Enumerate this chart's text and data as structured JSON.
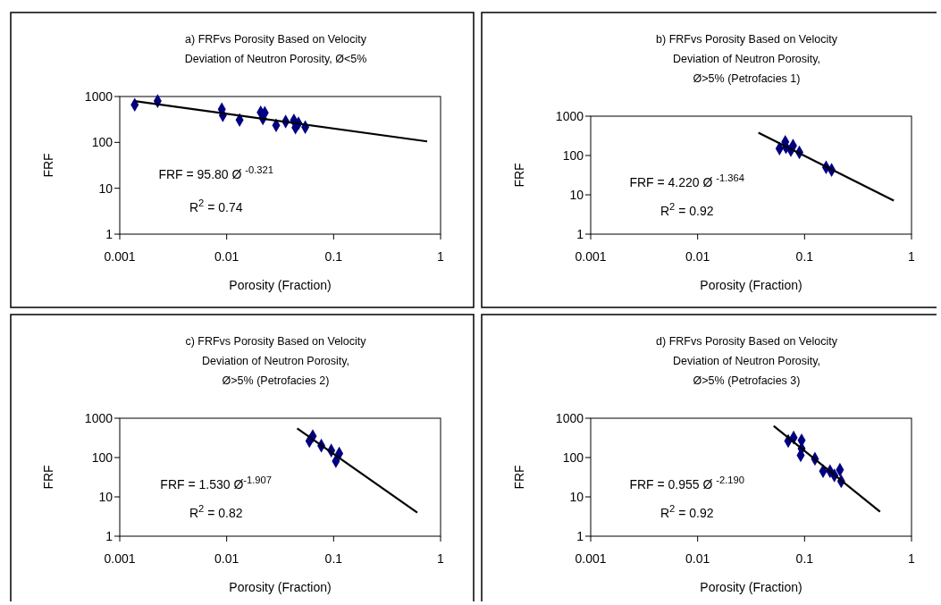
{
  "chart_data": [
    {
      "type": "scatter",
      "title": "a) FRFvs Porosity Based on Velocity\nDeviation of Neutron Porosity, Ø<5%",
      "xlabel": "Porosity (Fraction)",
      "ylabel": "FRF",
      "log": "xy",
      "xlim": [
        0.001,
        1
      ],
      "ylim": [
        1,
        1000
      ],
      "xticks": [
        0.001,
        0.01,
        0.1,
        1
      ],
      "yticks": [
        1,
        10,
        100,
        1000
      ],
      "annotations": [
        "FRF = 95.80 Ø $^{-0.321}$",
        "R$^{2}$ = 0.74"
      ],
      "series": [
        {
          "marker": "diamond",
          "color": "#000080",
          "x": [
            0.00138,
            0.00226,
            0.009,
            0.0092,
            0.0132,
            0.0208,
            0.0227,
            0.0218,
            0.029,
            0.0356,
            0.0425,
            0.044,
            0.0469,
            0.0543
          ],
          "values": [
            660,
            795,
            525,
            390,
            307,
            450,
            440,
            333,
            235,
            285,
            300,
            210,
            260,
            215
          ]
        },
        {
          "type": "line",
          "marker": "none",
          "color": "#000000",
          "x": [
            0.00138,
            0.75
          ],
          "values": [
            793,
            105
          ]
        }
      ]
    },
    {
      "type": "scatter",
      "title": "b) FRFvs Porosity Based on Velocity\nDeviation of Neutron Porosity,\nØ>5% (Petrofacies 1)",
      "xlabel": "Porosity (Fraction)",
      "ylabel": "FRF",
      "log": "xy",
      "xlim": [
        0.001,
        1
      ],
      "ylim": [
        1,
        1000
      ],
      "xticks": [
        0.001,
        0.01,
        0.1,
        1
      ],
      "yticks": [
        1,
        10,
        100,
        1000
      ],
      "annotations": [
        "FRF = 4.220 Ø $^{-1.364}$",
        "R$^{2}$ = 0.92"
      ],
      "series": [
        {
          "marker": "diamond",
          "color": "#000080",
          "x": [
            0.0583,
            0.066,
            0.067,
            0.0745,
            0.078,
            0.0894,
            0.159,
            0.179
          ],
          "values": [
            150,
            221,
            163,
            137,
            177,
            120,
            50,
            43
          ]
        },
        {
          "type": "line",
          "marker": "none",
          "color": "#000000",
          "x": [
            0.037,
            0.683
          ],
          "values": [
            379,
            7.1
          ]
        }
      ]
    },
    {
      "type": "scatter",
      "title": "c) FRFvs Porosity Based on Velocity\nDeviation of Neutron Porosity,\nØ>5% (Petrofacies 2)",
      "xlabel": "Porosity (Fraction)",
      "ylabel": "FRF",
      "log": "xy",
      "xlim": [
        0.001,
        1
      ],
      "ylim": [
        1,
        1000
      ],
      "xticks": [
        0.001,
        0.01,
        0.1,
        1
      ],
      "yticks": [
        1,
        10,
        100,
        1000
      ],
      "annotations": [
        "FRF = 1.530 Ø$^{-1.907}$",
        "R$^{2}$ = 0.82"
      ],
      "series": [
        {
          "marker": "diamond",
          "color": "#000080",
          "x": [
            0.0638,
            0.0594,
            0.0767,
            0.095,
            0.1128,
            0.105
          ],
          "values": [
            351,
            263,
            201,
            151,
            127,
            81
          ]
        },
        {
          "type": "line",
          "marker": "none",
          "color": "#000000",
          "x": [
            0.0456,
            0.606
          ],
          "values": [
            551,
            3.98
          ]
        }
      ]
    },
    {
      "type": "scatter",
      "title": "d) FRFvs Porosity Based on Velocity\nDeviation of Neutron Porosity,\nØ>5% (Petrofacies 3)",
      "xlabel": "Porosity (Fraction)",
      "ylabel": "FRF",
      "log": "xy",
      "xlim": [
        0.001,
        1
      ],
      "ylim": [
        1,
        1000
      ],
      "xticks": [
        0.001,
        0.01,
        0.1,
        1
      ],
      "yticks": [
        1,
        10,
        100,
        1000
      ],
      "annotations": [
        "FRF = 0.955 Ø $^{-2.190}$",
        "R$^{2}$ = 0.92"
      ],
      "series": [
        {
          "marker": "diamond",
          "color": "#000080",
          "x": [
            0.0703,
            0.079,
            0.0938,
            0.0938,
            0.092,
            0.125,
            0.149,
            0.173,
            0.19,
            0.214,
            0.22
          ],
          "values": [
            265,
            322,
            274,
            169,
            114,
            93,
            45,
            45,
            35,
            49,
            25
          ]
        },
        {
          "type": "line",
          "marker": "none",
          "color": "#000000",
          "x": [
            0.0514,
            0.508
          ],
          "values": [
            635,
            4.2
          ]
        }
      ]
    }
  ]
}
